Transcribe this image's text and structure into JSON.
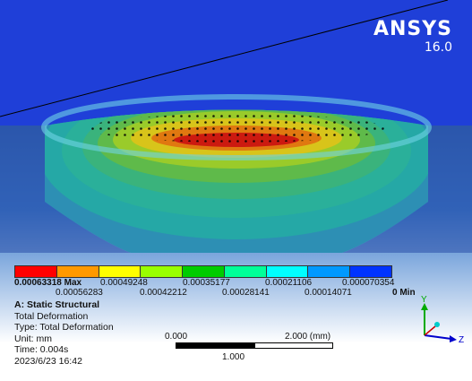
{
  "brand": {
    "name": "ANSYS",
    "version": "16.0"
  },
  "legend": {
    "colors": [
      "#ff0000",
      "#ff9900",
      "#ffff00",
      "#99ff00",
      "#00cc00",
      "#00ff99",
      "#00ffff",
      "#0099ff",
      "#0033ff"
    ],
    "top_labels": [
      "0.00063318 Max",
      "0.00049248",
      "0.00035177",
      "0.00021106",
      "0.000070354"
    ],
    "bottom_labels": [
      "0.00056283",
      "0.00042212",
      "0.00028141",
      "0.00014071",
      "0 Min"
    ]
  },
  "info": {
    "title": "A: Static Structural",
    "result": "Total Deformation",
    "type": "Type: Total Deformation",
    "unit": "Unit: mm",
    "time": "Time: 0.004s",
    "date": "2023/6/23 16:42"
  },
  "scale": {
    "start": "0.000",
    "end": "2.000 (mm)",
    "mid": "1.000"
  },
  "triad": {
    "y_label": "Y",
    "z_label": "Z",
    "colors": {
      "y": "#00aa00",
      "z": "#0000cc",
      "x": "#cc0000",
      "ball": "#00cccc"
    }
  }
}
